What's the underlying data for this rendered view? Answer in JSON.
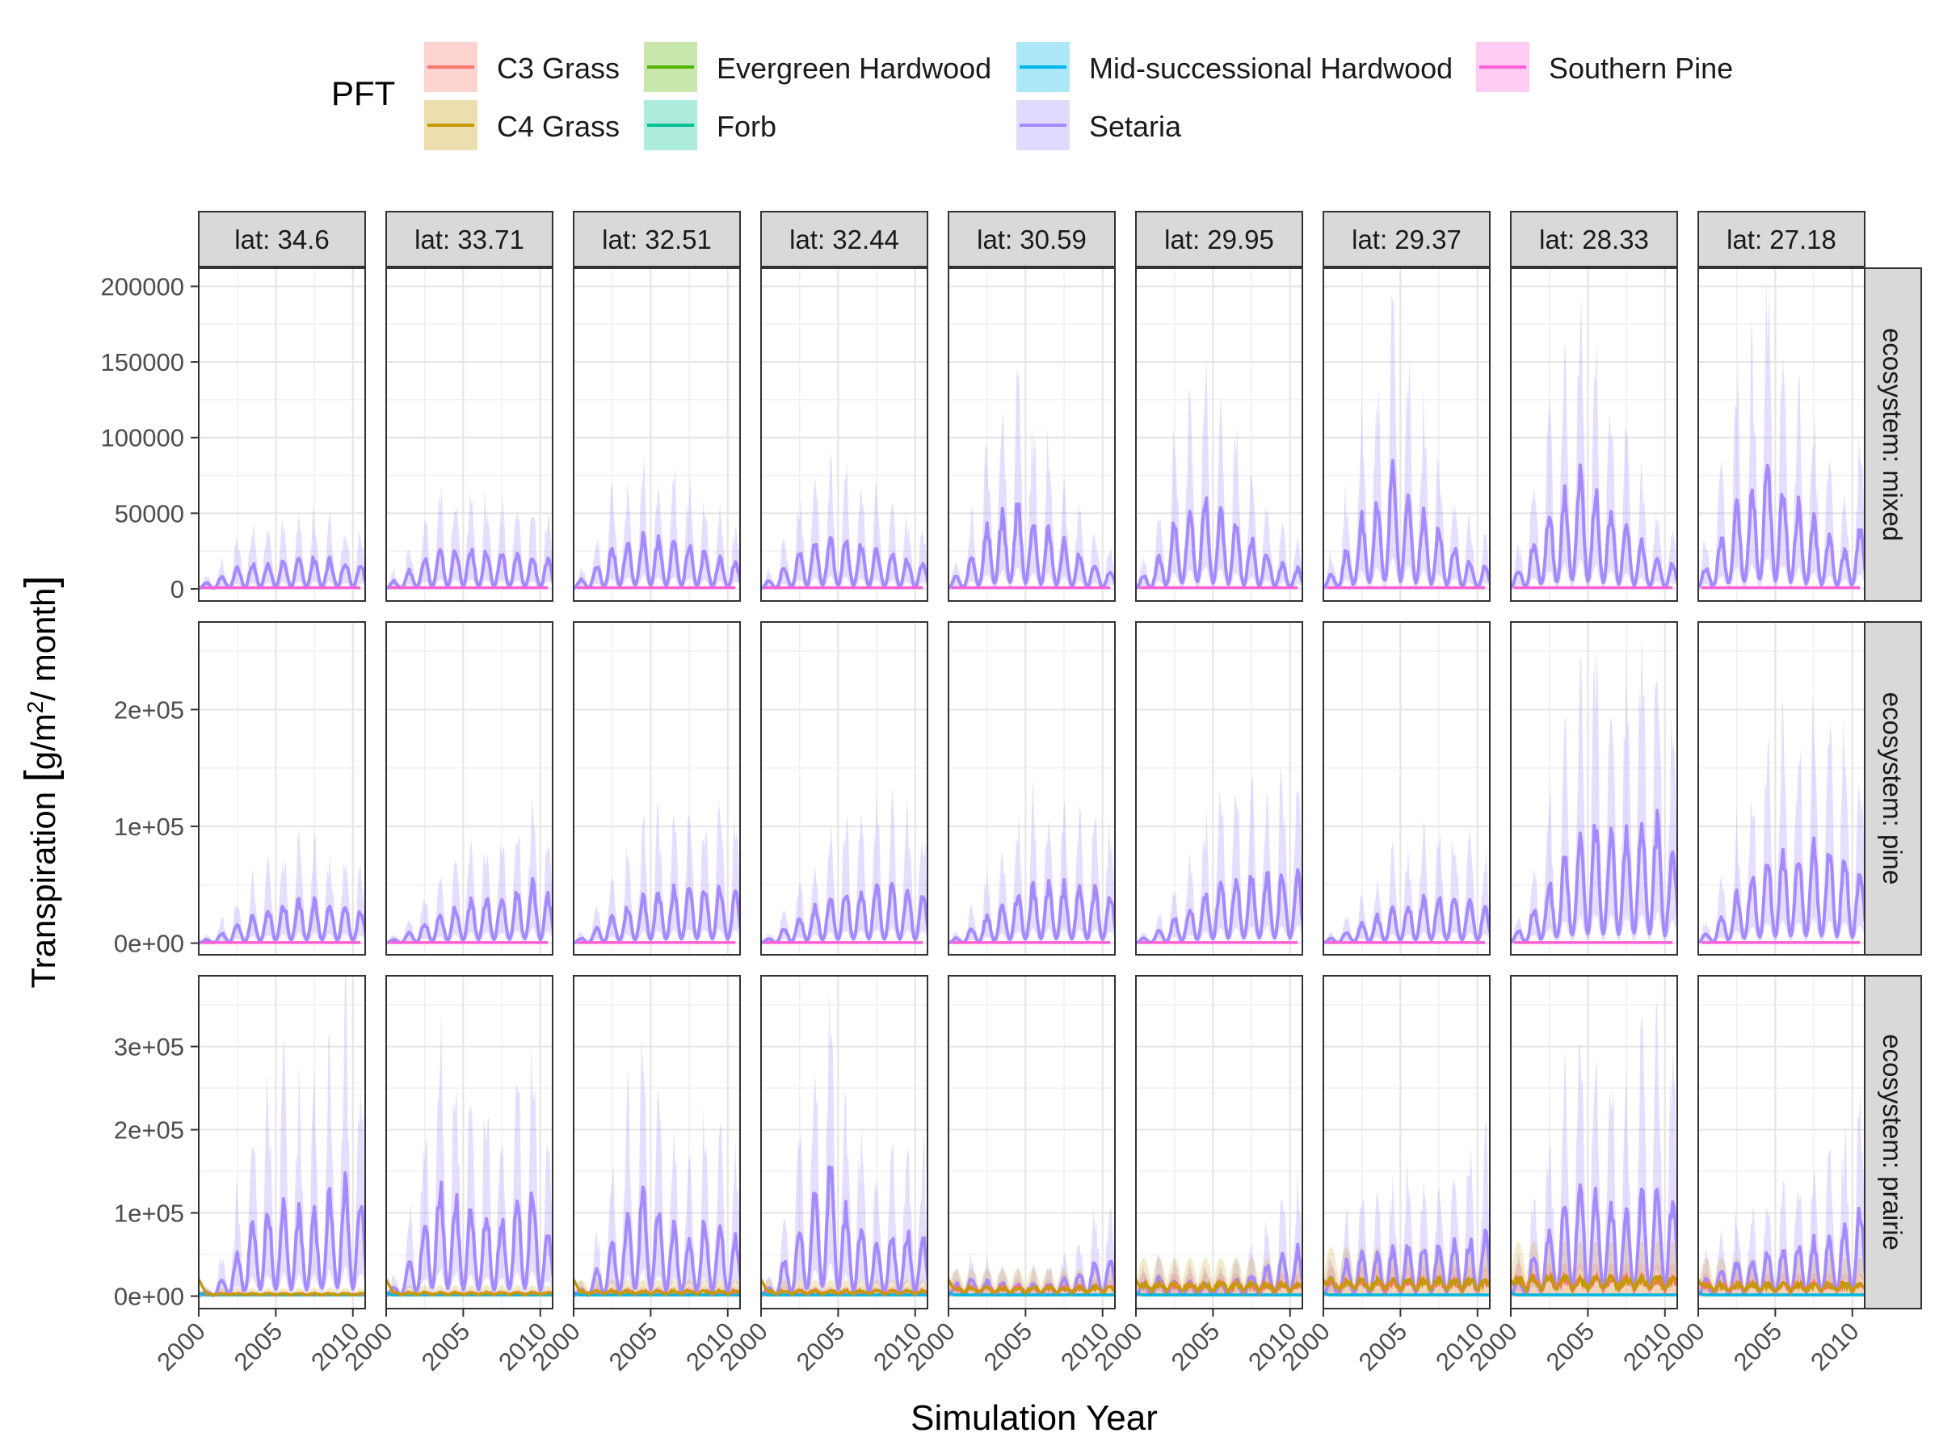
{
  "chart_data": {
    "type": "line",
    "xlabel": "Simulation Year",
    "ylabel_main": "Transpiration ",
    "ylabel_units_a": "g/m",
    "ylabel_units_sup": "2",
    "ylabel_units_b": "/ month",
    "legend": {
      "title": "PFT",
      "placement": "top",
      "entries": [
        {
          "name": "C3 Grass",
          "color": "#F8766D"
        },
        {
          "name": "C4 Grass",
          "color": "#C49A00"
        },
        {
          "name": "Evergreen Hardwood",
          "color": "#53B400"
        },
        {
          "name": "Forb",
          "color": "#00C094"
        },
        {
          "name": "Mid-successional Hardwood",
          "color": "#00B6EB"
        },
        {
          "name": "Setaria",
          "color": "#A58AFF"
        },
        {
          "name": "Southern Pine",
          "color": "#FB61D7"
        }
      ]
    },
    "x_range": [
      2000,
      2010.8
    ],
    "x_ticks": [
      2000,
      2005,
      2010
    ],
    "x_tick_labels": [
      "2000",
      "2005",
      "2010"
    ],
    "columns": [
      {
        "label": "lat: 34.6"
      },
      {
        "label": "lat: 33.71"
      },
      {
        "label": "lat: 32.51"
      },
      {
        "label": "lat: 32.44"
      },
      {
        "label": "lat: 30.59"
      },
      {
        "label": "lat: 29.95"
      },
      {
        "label": "lat: 29.37"
      },
      {
        "label": "lat: 28.33"
      },
      {
        "label": "lat: 27.18"
      }
    ],
    "rows": [
      {
        "label": "ecosystem: mixed",
        "y_range": [
          -8000,
          212000
        ],
        "y_ticks": [
          0,
          50000,
          100000,
          150000,
          200000
        ],
        "y_tick_labels": [
          "0",
          "50000",
          "100000",
          "150000",
          "200000"
        ],
        "setaria_peak_by_year": [
          [
            4000,
            8000,
            14000,
            16000,
            17000,
            18000,
            19000,
            20000,
            19000,
            18000,
            16000
          ],
          [
            5000,
            12000,
            20000,
            24000,
            26000,
            25000,
            24000,
            23000,
            22000,
            20000,
            18000
          ],
          [
            6000,
            15000,
            25000,
            30000,
            33000,
            32000,
            29000,
            27000,
            24000,
            20000,
            17000
          ],
          [
            5000,
            14000,
            24000,
            30000,
            32000,
            30000,
            28000,
            25000,
            22000,
            19000,
            17000
          ],
          [
            8000,
            20000,
            40000,
            48000,
            55000,
            45000,
            38000,
            30000,
            22000,
            15000,
            12000
          ],
          [
            8000,
            20000,
            42000,
            50000,
            60000,
            48000,
            40000,
            32000,
            24000,
            16000,
            13000
          ],
          [
            10000,
            24000,
            46000,
            55000,
            75000,
            60000,
            48000,
            38000,
            28000,
            18000,
            14000
          ],
          [
            12000,
            30000,
            48000,
            60000,
            77000,
            62000,
            52000,
            40000,
            30000,
            20000,
            16000
          ],
          [
            14000,
            32000,
            52000,
            62000,
            82000,
            64000,
            54000,
            44000,
            34000,
            24000,
            38000
          ]
        ],
        "pine_level": [
          800,
          800,
          800,
          800,
          800,
          800,
          800,
          800,
          800
        ],
        "prairie_pft_level": [
          0,
          0,
          0,
          0,
          0,
          0,
          0,
          0,
          0
        ]
      },
      {
        "label": "ecosystem: pine",
        "y_range": [
          -10000,
          275000
        ],
        "y_ticks": [
          0,
          100000,
          200000
        ],
        "y_tick_labels": [
          "0e+00",
          "1e+05",
          "2e+05"
        ],
        "setaria_peak_by_year": [
          [
            3000,
            8000,
            15000,
            22000,
            28000,
            33000,
            35000,
            34000,
            33000,
            30000,
            26000
          ],
          [
            3000,
            9000,
            17000,
            24000,
            30000,
            35000,
            38000,
            40000,
            42000,
            50000,
            38000
          ],
          [
            4000,
            12000,
            22000,
            30000,
            38000,
            42000,
            45000,
            47000,
            48000,
            47000,
            42000
          ],
          [
            4000,
            12000,
            22000,
            30000,
            36000,
            42000,
            45000,
            47000,
            46000,
            44000,
            40000
          ],
          [
            4000,
            12000,
            22000,
            32000,
            40000,
            46000,
            48000,
            48000,
            46000,
            44000,
            40000
          ],
          [
            4000,
            10000,
            20000,
            30000,
            42000,
            50000,
            55000,
            58000,
            58000,
            58000,
            56000
          ],
          [
            4000,
            10000,
            16000,
            22000,
            28000,
            32000,
            36000,
            38000,
            38000,
            36000,
            30000
          ],
          [
            10000,
            28000,
            50000,
            70000,
            90000,
            100000,
            98000,
            95000,
            108000,
            100000,
            80000
          ],
          [
            8000,
            22000,
            40000,
            55000,
            68000,
            75000,
            78000,
            80000,
            78000,
            72000,
            64000
          ]
        ],
        "pine_level": [
          500,
          500,
          500,
          500,
          500,
          500,
          500,
          500,
          500
        ],
        "prairie_pft_level": [
          0,
          0,
          0,
          0,
          0,
          0,
          0,
          0,
          0
        ]
      },
      {
        "label": "ecosystem: prairie",
        "y_range": [
          -15000,
          385000
        ],
        "y_ticks": [
          0,
          100000,
          200000,
          300000
        ],
        "y_tick_labels": [
          "0e+00",
          "1e+05",
          "2e+05",
          "3e+05"
        ],
        "setaria_peak_by_year": [
          [
            5000,
            20000,
            50000,
            90000,
            100000,
            105000,
            100000,
            95000,
            120000,
            130000,
            110000
          ],
          [
            10000,
            40000,
            90000,
            130000,
            115000,
            100000,
            95000,
            90000,
            110000,
            120000,
            80000
          ],
          [
            8000,
            30000,
            60000,
            90000,
            120000,
            100000,
            80000,
            70000,
            85000,
            80000,
            70000
          ],
          [
            10000,
            40000,
            80000,
            120000,
            150000,
            100000,
            80000,
            60000,
            70000,
            75000,
            70000
          ],
          [
            15000,
            20000,
            18000,
            16000,
            14000,
            14000,
            16000,
            20000,
            28000,
            40000,
            45000
          ],
          [
            15000,
            22000,
            18000,
            16000,
            15000,
            16000,
            20000,
            26000,
            36000,
            48000,
            55000
          ],
          [
            20000,
            40000,
            48000,
            50000,
            55000,
            58000,
            60000,
            60000,
            62000,
            65000,
            75000
          ],
          [
            20000,
            50000,
            80000,
            110000,
            130000,
            120000,
            110000,
            100000,
            120000,
            130000,
            115000
          ],
          [
            20000,
            30000,
            40000,
            45000,
            50000,
            55000,
            60000,
            65000,
            70000,
            80000,
            100000
          ]
        ],
        "pine_level": [
          0,
          0,
          0,
          0,
          0,
          0,
          0,
          0,
          0
        ],
        "prairie_pft_level": [
          3000,
          4000,
          6000,
          6000,
          10000,
          14000,
          18000,
          20000,
          14000
        ]
      }
    ]
  }
}
